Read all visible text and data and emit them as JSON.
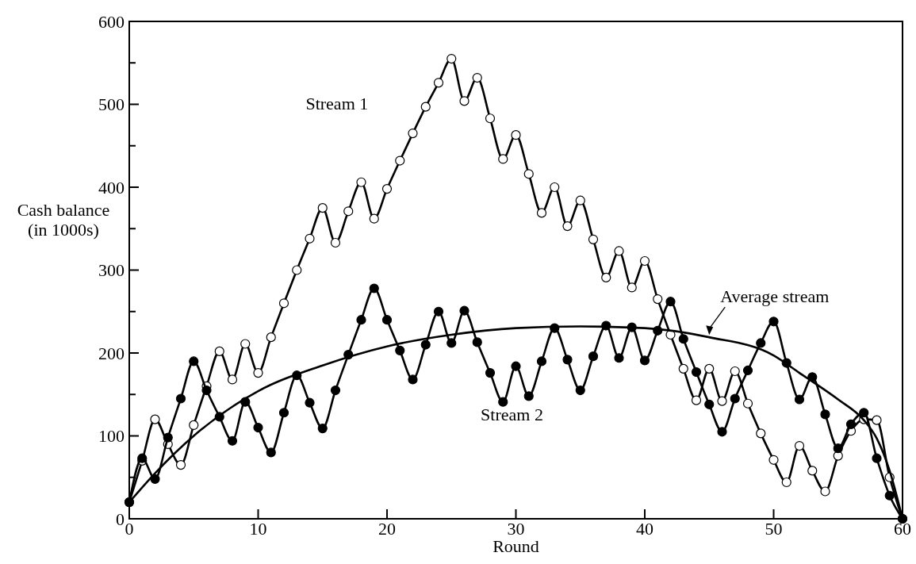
{
  "chart_data": {
    "type": "line",
    "xlabel": "Round",
    "ylabel": "Cash balance (in 1000s)",
    "xlim": [
      0,
      60
    ],
    "xticks": [
      0,
      10,
      20,
      30,
      40,
      50,
      60
    ],
    "ylim": [
      0,
      600
    ],
    "yticks": [
      0,
      {
        "value": 50,
        "label": null
      },
      100,
      {
        "value": 150,
        "label": null
      },
      200,
      {
        "value": 250,
        "label": null
      },
      300,
      {
        "value": 350,
        "label": null
      },
      400,
      {
        "value": 450,
        "label": null
      },
      500,
      {
        "value": 550,
        "label": null
      },
      600
    ],
    "grid": false,
    "line_style": "solid",
    "series": [
      {
        "name": "Stream 1",
        "color": "#000000",
        "marker": "circle",
        "x": [
          0,
          1,
          2,
          3,
          4,
          5,
          6,
          7,
          8,
          9,
          10,
          11,
          12,
          13,
          14,
          15,
          16,
          17,
          18,
          19,
          20,
          21,
          22,
          23,
          24,
          25,
          26,
          27,
          28,
          29,
          30,
          31,
          32,
          33,
          34,
          35,
          36,
          37,
          38,
          39,
          40,
          41,
          42,
          43,
          44,
          45,
          46,
          47,
          48,
          49,
          50,
          51,
          52,
          53,
          54,
          55,
          56,
          57,
          58,
          59,
          60
        ],
        "values": [
          20,
          70,
          120,
          90,
          65,
          113,
          160,
          202,
          168,
          211,
          176,
          219,
          260,
          300,
          338,
          375,
          333,
          371,
          406,
          362,
          398,
          432,
          465,
          497,
          526,
          555,
          504,
          532,
          483,
          434,
          463,
          416,
          369,
          400,
          353,
          384,
          337,
          291,
          323,
          279,
          311,
          265,
          222,
          181,
          143,
          181,
          142,
          178,
          139,
          103,
          71,
          44,
          88,
          58,
          33,
          76,
          106,
          120,
          119,
          50,
          0
        ]
      },
      {
        "name": "Stream 2",
        "color": "#000000",
        "marker": "circle",
        "x": [
          0,
          1,
          2,
          3,
          4,
          5,
          6,
          7,
          8,
          9,
          10,
          11,
          12,
          13,
          14,
          15,
          16,
          17,
          18,
          19,
          20,
          21,
          22,
          23,
          24,
          25,
          26,
          27,
          28,
          29,
          30,
          31,
          32,
          33,
          34,
          35,
          36,
          37,
          38,
          39,
          40,
          41,
          42,
          43,
          44,
          45,
          46,
          47,
          48,
          49,
          50,
          51,
          52,
          53,
          54,
          55,
          56,
          57,
          58,
          59,
          60
        ],
        "values": [
          20,
          73,
          48,
          98,
          145,
          190,
          155,
          123,
          94,
          141,
          110,
          80,
          128,
          173,
          140,
          109,
          155,
          198,
          240,
          278,
          240,
          203,
          168,
          210,
          250,
          212,
          251,
          213,
          176,
          141,
          184,
          148,
          190,
          230,
          192,
          155,
          196,
          233,
          194,
          231,
          191,
          227,
          262,
          217,
          177,
          138,
          105,
          145,
          179,
          212,
          238,
          188,
          144,
          171,
          126,
          85,
          114,
          128,
          73,
          28,
          0
        ]
      },
      {
        "name": "Average stream",
        "color": "#000000",
        "marker": "none",
        "x": [
          0,
          2,
          5,
          10,
          15,
          20,
          25,
          30,
          35,
          40,
          45,
          50,
          52,
          55,
          57,
          58,
          59,
          60
        ],
        "values": [
          20,
          55,
          100,
          154,
          185,
          208,
          222,
          230,
          232,
          230,
          219,
          197,
          176,
          144,
          119,
          97,
          58,
          0
        ]
      }
    ]
  }
}
